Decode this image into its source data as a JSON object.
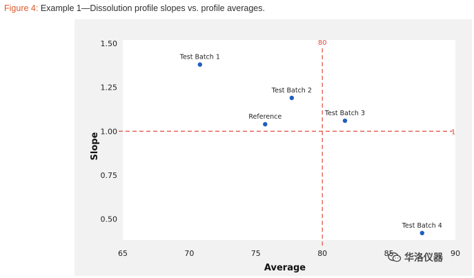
{
  "caption": {
    "label": "Figure 4:",
    "text": " Example 1—Dissolution profile slopes vs. profile averages."
  },
  "watermark": {
    "text": "华洛仪器",
    "icon": "wechat-icon"
  },
  "colors": {
    "point": "#1f5fbf",
    "reference_line": "#e04a3a",
    "caption_label": "#e05a2a",
    "plot_background": "#ffffff",
    "page_background": "#f2f2f2"
  },
  "chart_data": {
    "type": "scatter",
    "xlabel": "Average",
    "ylabel": "Slope",
    "xlim": [
      65,
      90
    ],
    "ylim": [
      0.38,
      1.52
    ],
    "x_ticks": [
      65,
      70,
      75,
      80,
      85,
      90
    ],
    "y_ticks": [
      0.5,
      0.75,
      1.0,
      1.25,
      1.5
    ],
    "x_tick_labels": [
      "65",
      "70",
      "75",
      "80",
      "85",
      "90"
    ],
    "y_tick_labels": [
      "0.50",
      "0.75",
      "1.00",
      "1.25",
      "1.50"
    ],
    "grid": false,
    "points": [
      {
        "label": "Test Batch 1",
        "x": 70.8,
        "y": 1.38
      },
      {
        "label": "Test Batch 2",
        "x": 77.7,
        "y": 1.19
      },
      {
        "label": "Reference",
        "x": 75.7,
        "y": 1.04
      },
      {
        "label": "Test Batch 3",
        "x": 81.7,
        "y": 1.06
      },
      {
        "label": "Test Batch 4",
        "x": 87.5,
        "y": 0.42
      }
    ],
    "reference_lines": [
      {
        "axis": "x",
        "value": 80,
        "label": "80"
      },
      {
        "axis": "y",
        "value": 1.0,
        "label": "1"
      }
    ]
  }
}
